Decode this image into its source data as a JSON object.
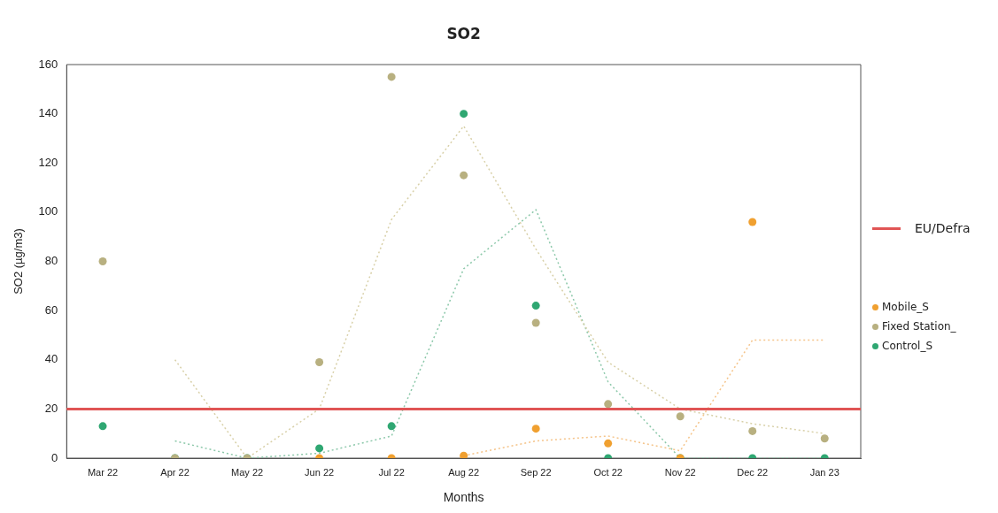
{
  "chart_data": {
    "type": "scatter",
    "title": "SO2",
    "xlabel": "Months",
    "ylabel": "SO2 (µg/m3)",
    "categories": [
      "Mar 22",
      "Apr 22",
      "May 22",
      "Jun 22",
      "Jul 22",
      "Aug 22",
      "Sep 22",
      "Oct 22",
      "Nov 22",
      "Dec 22",
      "Jan 23"
    ],
    "ylim": [
      0,
      160
    ],
    "yticks": [
      0,
      20,
      40,
      60,
      80,
      100,
      120,
      140,
      160
    ],
    "grid": false,
    "legend": "right",
    "marker": "circle",
    "ref_lines": [
      {
        "axis": "y",
        "value": 20,
        "label": "EU/Defra",
        "color": "#e05555"
      }
    ],
    "series": [
      {
        "type": "line",
        "color": "#f5c48a",
        "line_style": "dotted",
        "marker": "none",
        "values": [
          null,
          null,
          null,
          null,
          null,
          1,
          7,
          9,
          3,
          48,
          48
        ]
      },
      {
        "type": "line",
        "color": "#d8d0a8",
        "line_style": "dotted",
        "marker": "none",
        "values": [
          null,
          40,
          0,
          20,
          97,
          135,
          85,
          39,
          20,
          14,
          10
        ]
      },
      {
        "type": "line",
        "color": "#8cc8aa",
        "line_style": "dotted",
        "marker": "none",
        "values": [
          null,
          7,
          0,
          2,
          9,
          77,
          101,
          31,
          0,
          0,
          0
        ]
      },
      {
        "name": "Mobile_S",
        "color": "#f0a030",
        "values": [
          null,
          null,
          null,
          0,
          0,
          1,
          12,
          6,
          0,
          96,
          null
        ]
      },
      {
        "name": "Fixed Station_",
        "color": "#b8b080",
        "values": [
          80,
          0,
          0,
          39,
          155,
          115,
          55,
          22,
          17,
          11,
          8
        ]
      },
      {
        "name": "Control_S",
        "color": "#2fa772",
        "values": [
          13,
          0,
          0,
          4,
          13,
          140,
          62,
          0,
          0,
          0,
          0
        ]
      }
    ]
  }
}
